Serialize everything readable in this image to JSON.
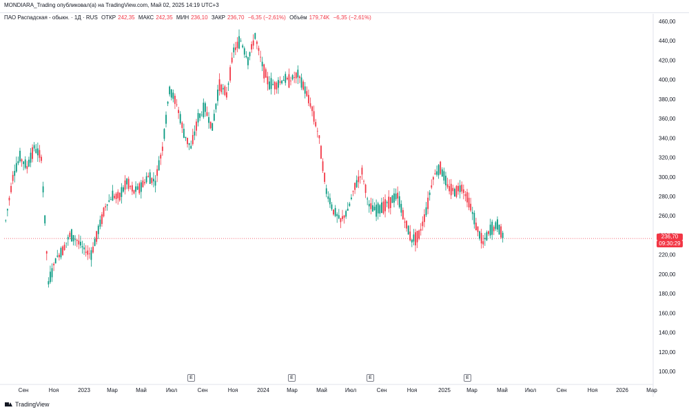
{
  "header": {
    "published": "MONDIARA_Trading опубликовал(а) на TradingView.com, Май 02, 2025 14:19 UTC+3"
  },
  "legend": {
    "symbol": "ПАО Распадская - обыкн. · 1Д · RUS",
    "open_label": "ОТКР",
    "open_value": "242,35",
    "high_label": "МАКС",
    "high_value": "242,35",
    "low_label": "МИН",
    "low_value": "236,10",
    "close_label": "ЗАКР",
    "close_value": "236,70",
    "change": "−6,35 (−2,61%)",
    "volume_label": "Объём",
    "volume_value": "179,74K",
    "volume_change": "−6,35 (−2,61%)"
  },
  "price_tag": {
    "price": "236,70",
    "countdown": "09:30:29"
  },
  "footer": {
    "logo_text": "TradingView"
  },
  "colors": {
    "up": "#089981",
    "down": "#f23645",
    "last_price_line": "#f23645",
    "axis_text": "#131722"
  },
  "chart_data": {
    "type": "candlestick",
    "title": "",
    "ylim": [
      90,
      465
    ],
    "y_ticks": [
      "100,00",
      "120,00",
      "140,00",
      "160,00",
      "180,00",
      "200,00",
      "220,00",
      "240,00",
      "260,00",
      "280,00",
      "300,00",
      "320,00",
      "340,00",
      "360,00",
      "380,00",
      "400,00",
      "420,00",
      "440,00",
      "460,00"
    ],
    "x_ticks": [
      "Сен",
      "Ноя",
      "2023",
      "Мар",
      "Май",
      "Июл",
      "Сен",
      "Ноя",
      "2024",
      "Мар",
      "Май",
      "Июл",
      "Сен",
      "Ноя",
      "2025",
      "Мар",
      "Май",
      "Июл",
      "Сен",
      "Ноя",
      "2026",
      "Мар"
    ],
    "last_price": 236.7,
    "event_markers": [
      "E",
      "E",
      "E",
      "E"
    ],
    "price_path": [
      [
        0,
        255
      ],
      [
        4,
        300
      ],
      [
        8,
        320
      ],
      [
        12,
        310
      ],
      [
        16,
        330
      ],
      [
        20,
        320
      ],
      [
        24,
        190
      ],
      [
        28,
        215
      ],
      [
        32,
        225
      ],
      [
        36,
        240
      ],
      [
        40,
        235
      ],
      [
        44,
        225
      ],
      [
        48,
        220
      ],
      [
        52,
        245
      ],
      [
        56,
        270
      ],
      [
        60,
        280
      ],
      [
        64,
        280
      ],
      [
        68,
        295
      ],
      [
        72,
        285
      ],
      [
        76,
        290
      ],
      [
        80,
        300
      ],
      [
        84,
        295
      ],
      [
        88,
        330
      ],
      [
        92,
        390
      ],
      [
        96,
        375
      ],
      [
        100,
        345
      ],
      [
        104,
        330
      ],
      [
        108,
        360
      ],
      [
        112,
        370
      ],
      [
        116,
        350
      ],
      [
        120,
        395
      ],
      [
        124,
        385
      ],
      [
        128,
        430
      ],
      [
        132,
        440
      ],
      [
        136,
        420
      ],
      [
        140,
        445
      ],
      [
        144,
        415
      ],
      [
        148,
        395
      ],
      [
        152,
        395
      ],
      [
        156,
        400
      ],
      [
        160,
        400
      ],
      [
        164,
        405
      ],
      [
        168,
        390
      ],
      [
        172,
        370
      ],
      [
        176,
        340
      ],
      [
        180,
        285
      ],
      [
        184,
        265
      ],
      [
        188,
        255
      ],
      [
        192,
        265
      ],
      [
        196,
        290
      ],
      [
        200,
        305
      ],
      [
        204,
        270
      ],
      [
        208,
        265
      ],
      [
        212,
        270
      ],
      [
        216,
        275
      ],
      [
        220,
        280
      ],
      [
        224,
        255
      ],
      [
        228,
        235
      ],
      [
        232,
        240
      ],
      [
        236,
        265
      ],
      [
        240,
        300
      ],
      [
        244,
        310
      ],
      [
        248,
        290
      ],
      [
        252,
        285
      ],
      [
        256,
        290
      ],
      [
        260,
        275
      ],
      [
        264,
        250
      ],
      [
        268,
        232
      ],
      [
        272,
        245
      ],
      [
        276,
        250
      ],
      [
        280,
        236.7
      ]
    ]
  }
}
